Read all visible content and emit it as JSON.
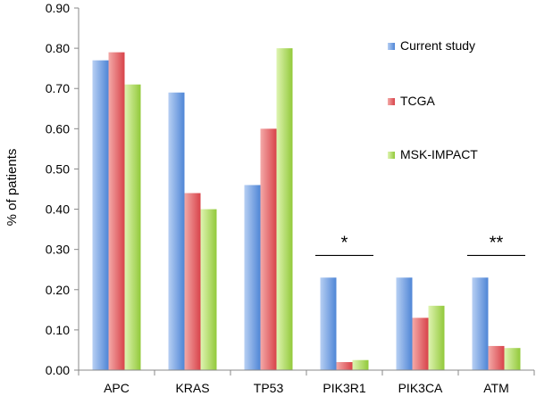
{
  "chart_data": {
    "type": "bar",
    "title": "",
    "xlabel": "",
    "ylabel": "% of patients",
    "ylim": [
      0,
      0.9
    ],
    "yticks": [
      "0.00",
      "0.10",
      "0.20",
      "0.30",
      "0.40",
      "0.50",
      "0.60",
      "0.70",
      "0.80",
      "0.90"
    ],
    "categories": [
      "APC",
      "KRAS",
      "TP53",
      "PIK3R1",
      "PIK3CA",
      "ATM"
    ],
    "series": [
      {
        "name": "Current study",
        "color": "#5b8fd9",
        "values": [
          0.77,
          0.69,
          0.46,
          0.23,
          0.23,
          0.23
        ]
      },
      {
        "name": "TCGA",
        "color": "#d94c4c",
        "values": [
          0.79,
          0.44,
          0.6,
          0.02,
          0.13,
          0.06
        ]
      },
      {
        "name": "MSK-IMPACT",
        "color": "#9ccf3c",
        "values": [
          0.71,
          0.4,
          0.8,
          0.025,
          0.16,
          0.055
        ]
      }
    ],
    "annotations": [
      {
        "category": "PIK3R1",
        "text": "*"
      },
      {
        "category": "ATM",
        "text": "**"
      }
    ],
    "legend_position": "right"
  }
}
